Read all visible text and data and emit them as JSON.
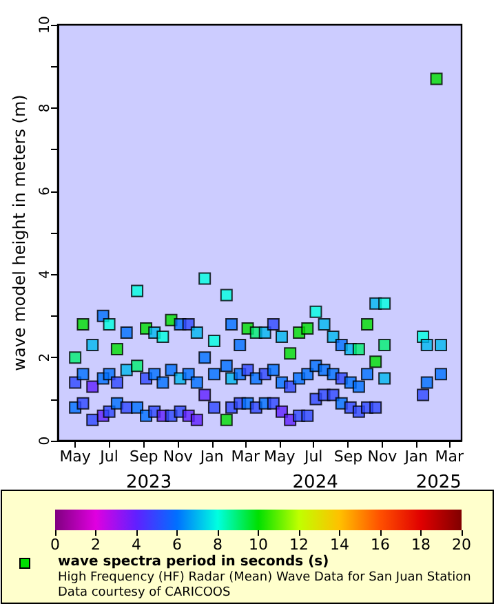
{
  "chart_data": {
    "type": "scatter",
    "ylabel": "wave model height in meters (m)",
    "clabel": "wave spectra period in seconds (s)",
    "clim": [
      0,
      20
    ],
    "cticks": [
      0,
      2,
      4,
      6,
      8,
      10,
      12,
      14,
      16,
      18,
      20
    ],
    "annotations": [
      "High Frequency (HF) Radar (Mean) Wave Data for San Juan Station",
      "Data courtesy of CARICOOS"
    ],
    "xlim": [
      "2023-03-31",
      "2025-03-23"
    ],
    "xticks": [
      {
        "value": "2023-05-01",
        "label": "May"
      },
      {
        "value": "2023-07-01",
        "label": "Jul"
      },
      {
        "value": "2023-09-01",
        "label": "Sep"
      },
      {
        "value": "2023-11-01",
        "label": "Nov"
      },
      {
        "value": "2024-01-01",
        "label": "Jan"
      },
      {
        "value": "2024-03-01",
        "label": "Mar"
      },
      {
        "value": "2024-05-01",
        "label": "May"
      },
      {
        "value": "2024-07-01",
        "label": "Jul"
      },
      {
        "value": "2024-09-01",
        "label": "Sep"
      },
      {
        "value": "2024-11-01",
        "label": "Nov"
      },
      {
        "value": "2025-01-01",
        "label": "Jan"
      },
      {
        "value": "2025-03-01",
        "label": "Mar"
      }
    ],
    "x2lim": [
      "2023-03-31",
      "2025-03-23"
    ],
    "x2ticks": [
      {
        "value": "2023-09-10",
        "label": "2023"
      },
      {
        "value": "2024-07-04",
        "label": "2024"
      },
      {
        "value": "2025-02-10",
        "label": "2025"
      }
    ],
    "ylim": [
      0,
      10
    ],
    "yticks": [
      0,
      {
        "value": 1,
        "label": null
      },
      2,
      {
        "value": 3,
        "label": null
      },
      4,
      {
        "value": 5,
        "label": null
      },
      6,
      {
        "value": 7,
        "label": null
      },
      8,
      {
        "value": 9,
        "label": null
      },
      10
    ],
    "marker": "square",
    "series": [
      {
        "x": [
          "2023-05-01",
          "2023-05-01",
          "2023-05-01",
          "2023-05-15",
          "2023-05-15",
          "2023-05-15",
          "2023-06-01",
          "2023-06-01",
          "2023-06-01",
          "2023-06-20",
          "2023-06-20",
          "2023-06-20",
          "2023-07-01",
          "2023-07-01",
          "2023-07-01",
          "2023-07-15",
          "2023-07-15",
          "2023-07-15",
          "2023-08-01",
          "2023-08-01",
          "2023-08-01",
          "2023-08-20",
          "2023-08-20",
          "2023-08-20",
          "2023-09-05",
          "2023-09-05",
          "2023-09-05",
          "2023-09-20",
          "2023-09-20",
          "2023-09-20",
          "2023-10-05",
          "2023-10-05",
          "2023-10-05",
          "2023-10-20",
          "2023-10-20",
          "2023-10-20",
          "2023-11-05",
          "2023-11-05",
          "2023-11-05",
          "2023-11-20",
          "2023-11-20",
          "2023-11-20",
          "2023-12-05",
          "2023-12-05",
          "2023-12-05",
          "2023-12-19",
          "2023-12-19",
          "2023-12-19",
          "2024-01-05",
          "2024-01-05",
          "2024-01-05",
          "2024-01-27",
          "2024-01-27",
          "2024-01-27",
          "2024-02-05",
          "2024-02-05",
          "2024-02-05",
          "2024-02-20",
          "2024-02-20",
          "2024-02-20",
          "2024-03-05",
          "2024-03-05",
          "2024-03-05",
          "2024-03-20",
          "2024-03-20",
          "2024-03-20",
          "2024-04-05",
          "2024-04-05",
          "2024-04-05",
          "2024-04-20",
          "2024-04-20",
          "2024-04-20",
          "2024-05-05",
          "2024-05-05",
          "2024-05-05",
          "2024-05-20",
          "2024-05-20",
          "2024-05-20",
          "2024-06-05",
          "2024-06-05",
          "2024-06-05",
          "2024-06-20",
          "2024-06-20",
          "2024-06-20",
          "2024-07-05",
          "2024-07-05",
          "2024-07-05",
          "2024-07-20",
          "2024-07-20",
          "2024-07-20",
          "2024-08-05",
          "2024-08-05",
          "2024-08-05",
          "2024-08-20",
          "2024-08-20",
          "2024-08-20",
          "2024-09-05",
          "2024-09-05",
          "2024-09-05",
          "2024-09-20",
          "2024-09-20",
          "2024-09-20",
          "2024-10-05",
          "2024-10-05",
          "2024-10-05",
          "2024-10-20",
          "2024-10-20",
          "2024-10-20",
          "2024-11-05",
          "2024-11-05",
          "2024-11-05",
          "2025-01-13",
          "2025-01-13",
          "2025-01-20",
          "2025-01-20",
          "2025-02-06",
          "2025-02-14",
          "2025-02-14"
        ],
        "values": [
          0.8,
          1.4,
          2.0,
          0.9,
          1.6,
          2.8,
          0.5,
          1.3,
          2.3,
          0.6,
          1.5,
          3.0,
          0.7,
          1.6,
          2.8,
          0.9,
          1.4,
          2.2,
          0.8,
          1.7,
          2.6,
          0.8,
          1.8,
          3.6,
          0.6,
          1.5,
          2.7,
          0.7,
          1.6,
          2.6,
          0.6,
          1.4,
          2.5,
          0.6,
          1.7,
          2.9,
          0.7,
          1.5,
          2.8,
          0.6,
          1.6,
          2.8,
          0.5,
          1.4,
          2.6,
          1.1,
          2.0,
          3.9,
          0.8,
          1.6,
          2.4,
          0.5,
          1.8,
          3.5,
          0.8,
          1.5,
          2.8,
          0.9,
          1.6,
          2.3,
          0.9,
          1.7,
          2.7,
          0.8,
          1.5,
          2.6,
          0.9,
          1.6,
          2.6,
          0.9,
          1.7,
          2.8,
          0.7,
          1.4,
          2.5,
          0.5,
          1.3,
          2.1,
          0.6,
          1.5,
          2.6,
          0.6,
          1.6,
          2.7,
          1.0,
          1.8,
          3.1,
          1.1,
          1.7,
          2.8,
          1.1,
          1.6,
          2.5,
          0.9,
          1.5,
          2.3,
          0.8,
          1.4,
          2.2,
          0.7,
          1.3,
          2.2,
          0.8,
          1.6,
          2.8,
          0.8,
          1.9,
          3.3,
          1.5,
          2.3,
          3.3,
          1.1,
          2.5,
          1.4,
          2.3,
          8.7,
          1.6,
          2.3
        ],
        "cvalues": [
          6,
          5,
          9,
          5,
          6,
          10,
          5,
          4,
          7,
          4,
          6,
          6,
          5,
          6,
          8,
          6,
          5,
          10,
          5,
          7,
          6,
          6,
          9,
          8,
          6,
          5,
          10,
          5,
          6,
          7,
          4,
          6,
          8,
          5,
          6,
          10,
          5,
          7,
          6,
          4,
          6,
          5,
          4,
          6,
          7,
          4,
          6,
          8,
          5,
          6,
          8,
          10,
          6,
          8,
          5,
          7,
          6,
          5,
          6,
          6,
          6,
          5,
          10,
          5,
          6,
          9,
          6,
          5,
          7,
          5,
          6,
          5,
          4,
          6,
          7,
          4,
          5,
          10,
          5,
          6,
          10,
          5,
          6,
          10,
          5,
          6,
          8,
          5,
          6,
          7,
          5,
          6,
          7,
          6,
          5,
          6,
          5,
          6,
          7,
          5,
          6,
          9,
          5,
          6,
          10,
          5,
          10,
          7,
          7,
          9,
          8,
          5,
          8,
          6,
          7,
          10,
          6,
          7
        ]
      }
    ]
  }
}
